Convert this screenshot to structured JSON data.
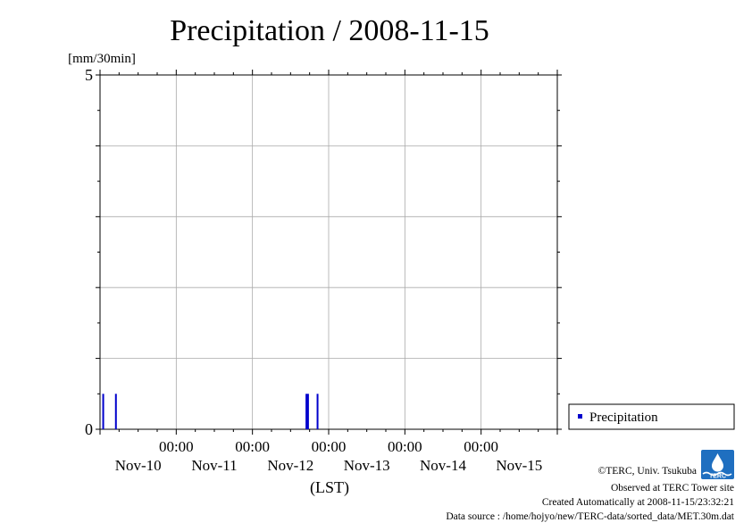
{
  "chart_data": {
    "type": "bar",
    "title": "Precipitation / 2008-11-15",
    "unit_label": "[mm/30min]",
    "xlabel": "(LST)",
    "ylabel": "",
    "ylim": [
      0,
      5
    ],
    "y_ticks": [
      "0",
      "5"
    ],
    "x_time_ticks": [
      "00:00",
      "00:00",
      "00:00",
      "00:00",
      "00:00"
    ],
    "x_date_ticks": [
      "Nov-10",
      "Nov-11",
      "Nov-12",
      "Nov-13",
      "Nov-14",
      "Nov-15"
    ],
    "x_range_hours": [
      0,
      144
    ],
    "grid": true,
    "legend_position": "bottom-right, outside plot",
    "series": [
      {
        "name": "Precipitation",
        "color": "#0000cc",
        "bars": [
          {
            "hour": 1.0,
            "value": 0.5
          },
          {
            "hour": 5.0,
            "value": 0.5
          },
          {
            "hour": 65.0,
            "value": 0.5
          },
          {
            "hour": 65.5,
            "value": 0.5
          },
          {
            "hour": 68.5,
            "value": 0.5
          }
        ]
      }
    ]
  },
  "footer": {
    "copyright": "©TERC, Univ. Tsukuba",
    "observed": "Observed at TERC Tower site",
    "created": "Created Automatically at 2008-11-15/23:32:21",
    "source": "Data source : /home/hojyo/new/TERC-data/sorted_data/MET.30m.dat"
  },
  "logo": {
    "text": "TERC",
    "color": "#1f6fc0"
  }
}
